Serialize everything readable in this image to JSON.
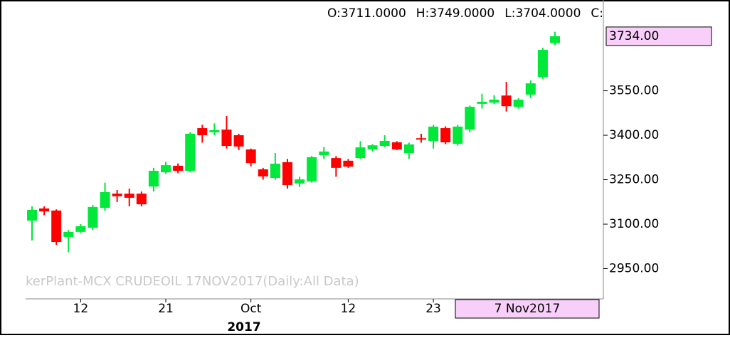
{
  "chart_data": {
    "type": "candlestick",
    "header": [
      "O:3711.0000",
      "H:3749.0000",
      "L:3704.0000",
      "C:"
    ],
    "watermark": "kerPlant-MCX CRUDEOIL 17NOV2017(Daily:All Data)",
    "year_label": "2017",
    "crosshair_date": "7 Nov2017",
    "last_price": {
      "value": 3734,
      "label": "3734.00"
    },
    "categories": [
      null,
      null,
      null,
      null,
      "12",
      null,
      null,
      null,
      null,
      null,
      null,
      "21",
      null,
      null,
      null,
      null,
      null,
      null,
      "Oct",
      null,
      null,
      null,
      null,
      null,
      null,
      null,
      "12",
      null,
      null,
      null,
      null,
      null,
      null,
      "23",
      null,
      null,
      null,
      null,
      null,
      null,
      null,
      null,
      null,
      null
    ],
    "open": [
      3112,
      3153,
      3146,
      3057,
      3074,
      3088,
      3155,
      3203,
      3203,
      3203,
      3227,
      3275,
      3297,
      3280,
      3424,
      3410,
      3419,
      3400,
      3352,
      3285,
      3256,
      3309,
      3237,
      3244,
      3333,
      3323,
      3314,
      3323,
      3352,
      3364,
      3376,
      3340,
      3390,
      3381,
      3424,
      3371,
      3419,
      3506,
      3510,
      3534,
      3496,
      3537,
      3597,
      3711
    ],
    "high": [
      3160,
      3160,
      3150,
      3080,
      3100,
      3165,
      3240,
      3215,
      3220,
      3210,
      3290,
      3310,
      3305,
      3410,
      3435,
      3440,
      3465,
      3405,
      3355,
      3290,
      3340,
      3320,
      3260,
      3330,
      3360,
      3330,
      3320,
      3380,
      3370,
      3400,
      3380,
      3375,
      3405,
      3435,
      3430,
      3435,
      3500,
      3540,
      3535,
      3580,
      3525,
      3585,
      3695,
      3749
    ],
    "low": [
      3045,
      3130,
      3030,
      3005,
      3070,
      3080,
      3145,
      3175,
      3160,
      3160,
      3210,
      3270,
      3272,
      3275,
      3375,
      3400,
      3355,
      3350,
      3295,
      3250,
      3250,
      3220,
      3225,
      3240,
      3320,
      3260,
      3290,
      3320,
      3345,
      3360,
      3350,
      3320,
      3375,
      3355,
      3370,
      3365,
      3410,
      3490,
      3505,
      3480,
      3490,
      3525,
      3590,
      3704
    ],
    "close": [
      3148,
      3143,
      3040,
      3074,
      3093,
      3158,
      3208,
      3194,
      3189,
      3167,
      3280,
      3299,
      3280,
      3405,
      3400,
      3417,
      3364,
      3362,
      3306,
      3261,
      3304,
      3232,
      3251,
      3326,
      3345,
      3290,
      3294,
      3359,
      3366,
      3381,
      3352,
      3369,
      3386,
      3429,
      3376,
      3429,
      3496,
      3513,
      3520,
      3498,
      3520,
      3575,
      3688,
      3734
    ],
    "up_color": "#00e83a",
    "down_color": "#ff0000",
    "ylim": [
      2848,
      3765
    ],
    "yticks": [
      {
        "value": 2950,
        "label": "2950.00"
      },
      {
        "value": 3100,
        "label": "3100.00"
      },
      {
        "value": 3250,
        "label": "3250.00"
      },
      {
        "value": 3400,
        "label": "3400.00"
      },
      {
        "value": 3550,
        "label": "3550.00"
      }
    ]
  }
}
